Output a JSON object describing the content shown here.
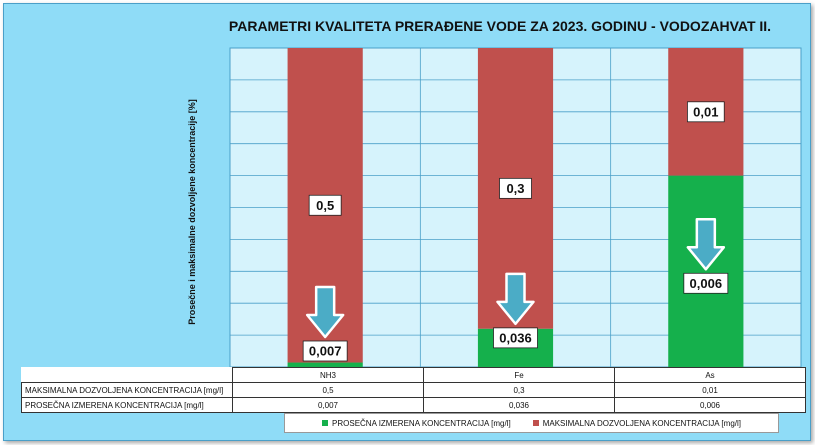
{
  "chart_data": {
    "type": "bar",
    "stacked": true,
    "title": "PARAMETRI  KVALITETA PRERAĐENE VODE ZA 2023. GODINU - VODOZAHVAT II.",
    "ylabel": "Prosečne i maksimalne dozvoljene koncentracije [%]",
    "xlabel": "",
    "ylim": [
      0,
      100
    ],
    "grid": true,
    "legend_position": "bottom",
    "categories": [
      "NH3",
      "Fe",
      "As"
    ],
    "series": [
      {
        "name": "PROSEČNA IZMERENA KONCENTRACIJA [mg/l]",
        "color": "#15b04c",
        "values": [
          1.4,
          12,
          60
        ],
        "labels": [
          "0,007",
          "0,036",
          "0,006"
        ]
      },
      {
        "name": "MAKSIMALNA DOZVOLJENA KONCENTRACIJA [mg/l]",
        "color": "#c0504d",
        "values": [
          98.6,
          88,
          40
        ],
        "labels": [
          "0,5",
          "0,3",
          "0,01"
        ]
      }
    ],
    "table": {
      "rows": [
        {
          "label": "MAKSIMALNA DOZVOLJENA KONCENTRACIJA [mg/l]",
          "values": [
            "0,5",
            "0,3",
            "0,01"
          ]
        },
        {
          "label": "PROSEČNA IZMERENA KONCENTRACIJA [mg/l]",
          "values": [
            "0,007",
            "0,036",
            "0,006"
          ]
        }
      ]
    }
  },
  "colors": {
    "background": "#8fdcf7",
    "plot_background": "#d6f3fc",
    "arrow": "#4bacc6"
  }
}
